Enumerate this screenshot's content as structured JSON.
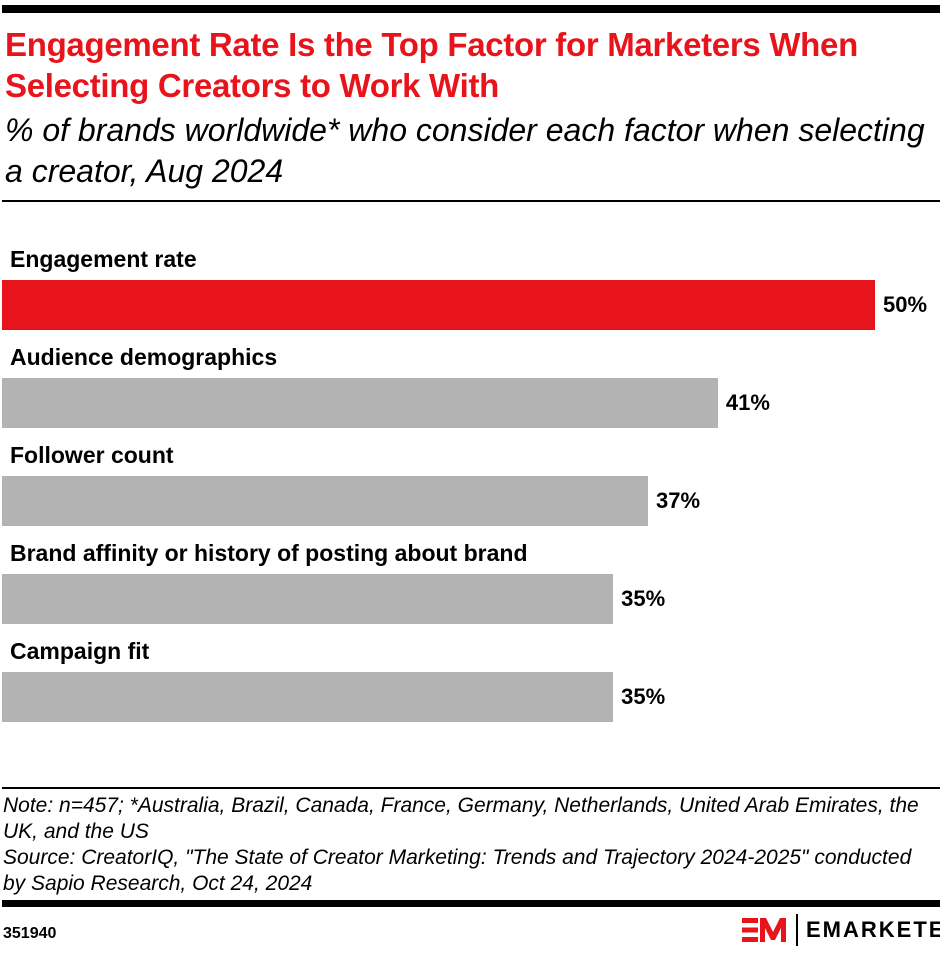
{
  "header": {
    "title": "Engagement Rate Is the Top Factor for Marketers When Selecting Creators to Work With",
    "subtitle": "% of brands worldwide* who consider each factor when selecting a creator, Aug 2024"
  },
  "chart_data": {
    "type": "bar",
    "orientation": "horizontal",
    "categories": [
      "Engagement rate",
      "Audience demographics",
      "Follower count",
      "Brand affinity or history of posting about brand",
      "Campaign fit"
    ],
    "values": [
      50,
      41,
      37,
      35,
      35
    ],
    "labels": [
      "50%",
      "41%",
      "37%",
      "35%",
      "35%"
    ],
    "highlight_color": "#e8141c",
    "bar_color": "#b3b3b3",
    "grid": false
  },
  "footer": {
    "note": "Note: n=457; *Australia, Brazil, Canada, France, Germany, Netherlands, United Arab Emirates, the UK, and the US",
    "source": "Source: CreatorIQ, \"The State of Creator Marketing: Trends and Trajectory 2024-2025\" conducted by Sapio Research, Oct 24, 2024",
    "chart_id": "351940",
    "brand": "EMARKETER"
  }
}
